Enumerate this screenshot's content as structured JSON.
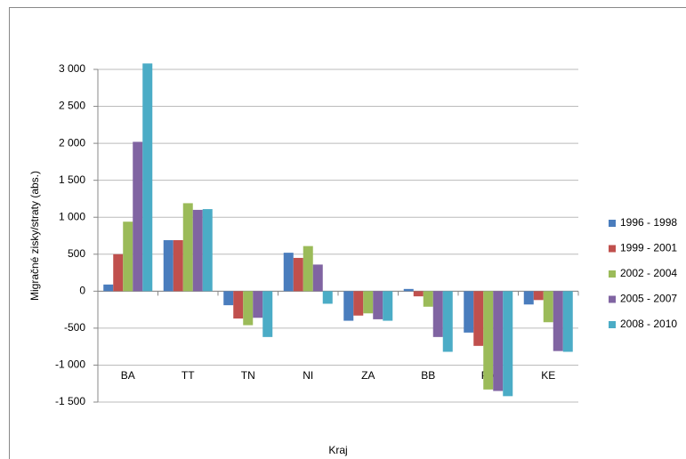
{
  "chart_data": {
    "type": "bar",
    "x_label": "Kraj",
    "y_label": "Migračné zisky/straty (abs.)",
    "categories": [
      "BA",
      "TT",
      "TN",
      "NI",
      "ZA",
      "BB",
      "PV",
      "KE"
    ],
    "series": [
      {
        "name": "1996 - 1998",
        "color": "#4a7dbd",
        "values": [
          90,
          690,
          -190,
          520,
          -400,
          30,
          -560,
          -180
        ]
      },
      {
        "name": "1999 - 2001",
        "color": "#c0504d",
        "values": [
          500,
          690,
          -370,
          450,
          -330,
          -70,
          -740,
          -120
        ]
      },
      {
        "name": "2002 - 2004",
        "color": "#9bbb59",
        "values": [
          940,
          1190,
          -460,
          610,
          -300,
          -210,
          -1330,
          -420
        ]
      },
      {
        "name": "2005 - 2007",
        "color": "#8064a2",
        "values": [
          2020,
          1100,
          -360,
          360,
          -380,
          -620,
          -1350,
          -810
        ]
      },
      {
        "name": "2008 - 2010",
        "color": "#4bacc6",
        "values": [
          3080,
          1110,
          -620,
          -170,
          -400,
          -820,
          -1420,
          -820
        ]
      }
    ],
    "ylim": [
      -1500,
      3000
    ],
    "yticks": [
      {
        "value": -1500,
        "label": "-1 500"
      },
      {
        "value": -1000,
        "label": "-1 000"
      },
      -500,
      0,
      500,
      {
        "value": 1000,
        "label": "1 000"
      },
      {
        "value": 1500,
        "label": "1 500"
      },
      {
        "value": 2000,
        "label": "2 000"
      },
      {
        "value": 2500,
        "label": "2 500"
      },
      {
        "value": 3000,
        "label": "3 000"
      }
    ],
    "grid": true,
    "legend": "right"
  }
}
